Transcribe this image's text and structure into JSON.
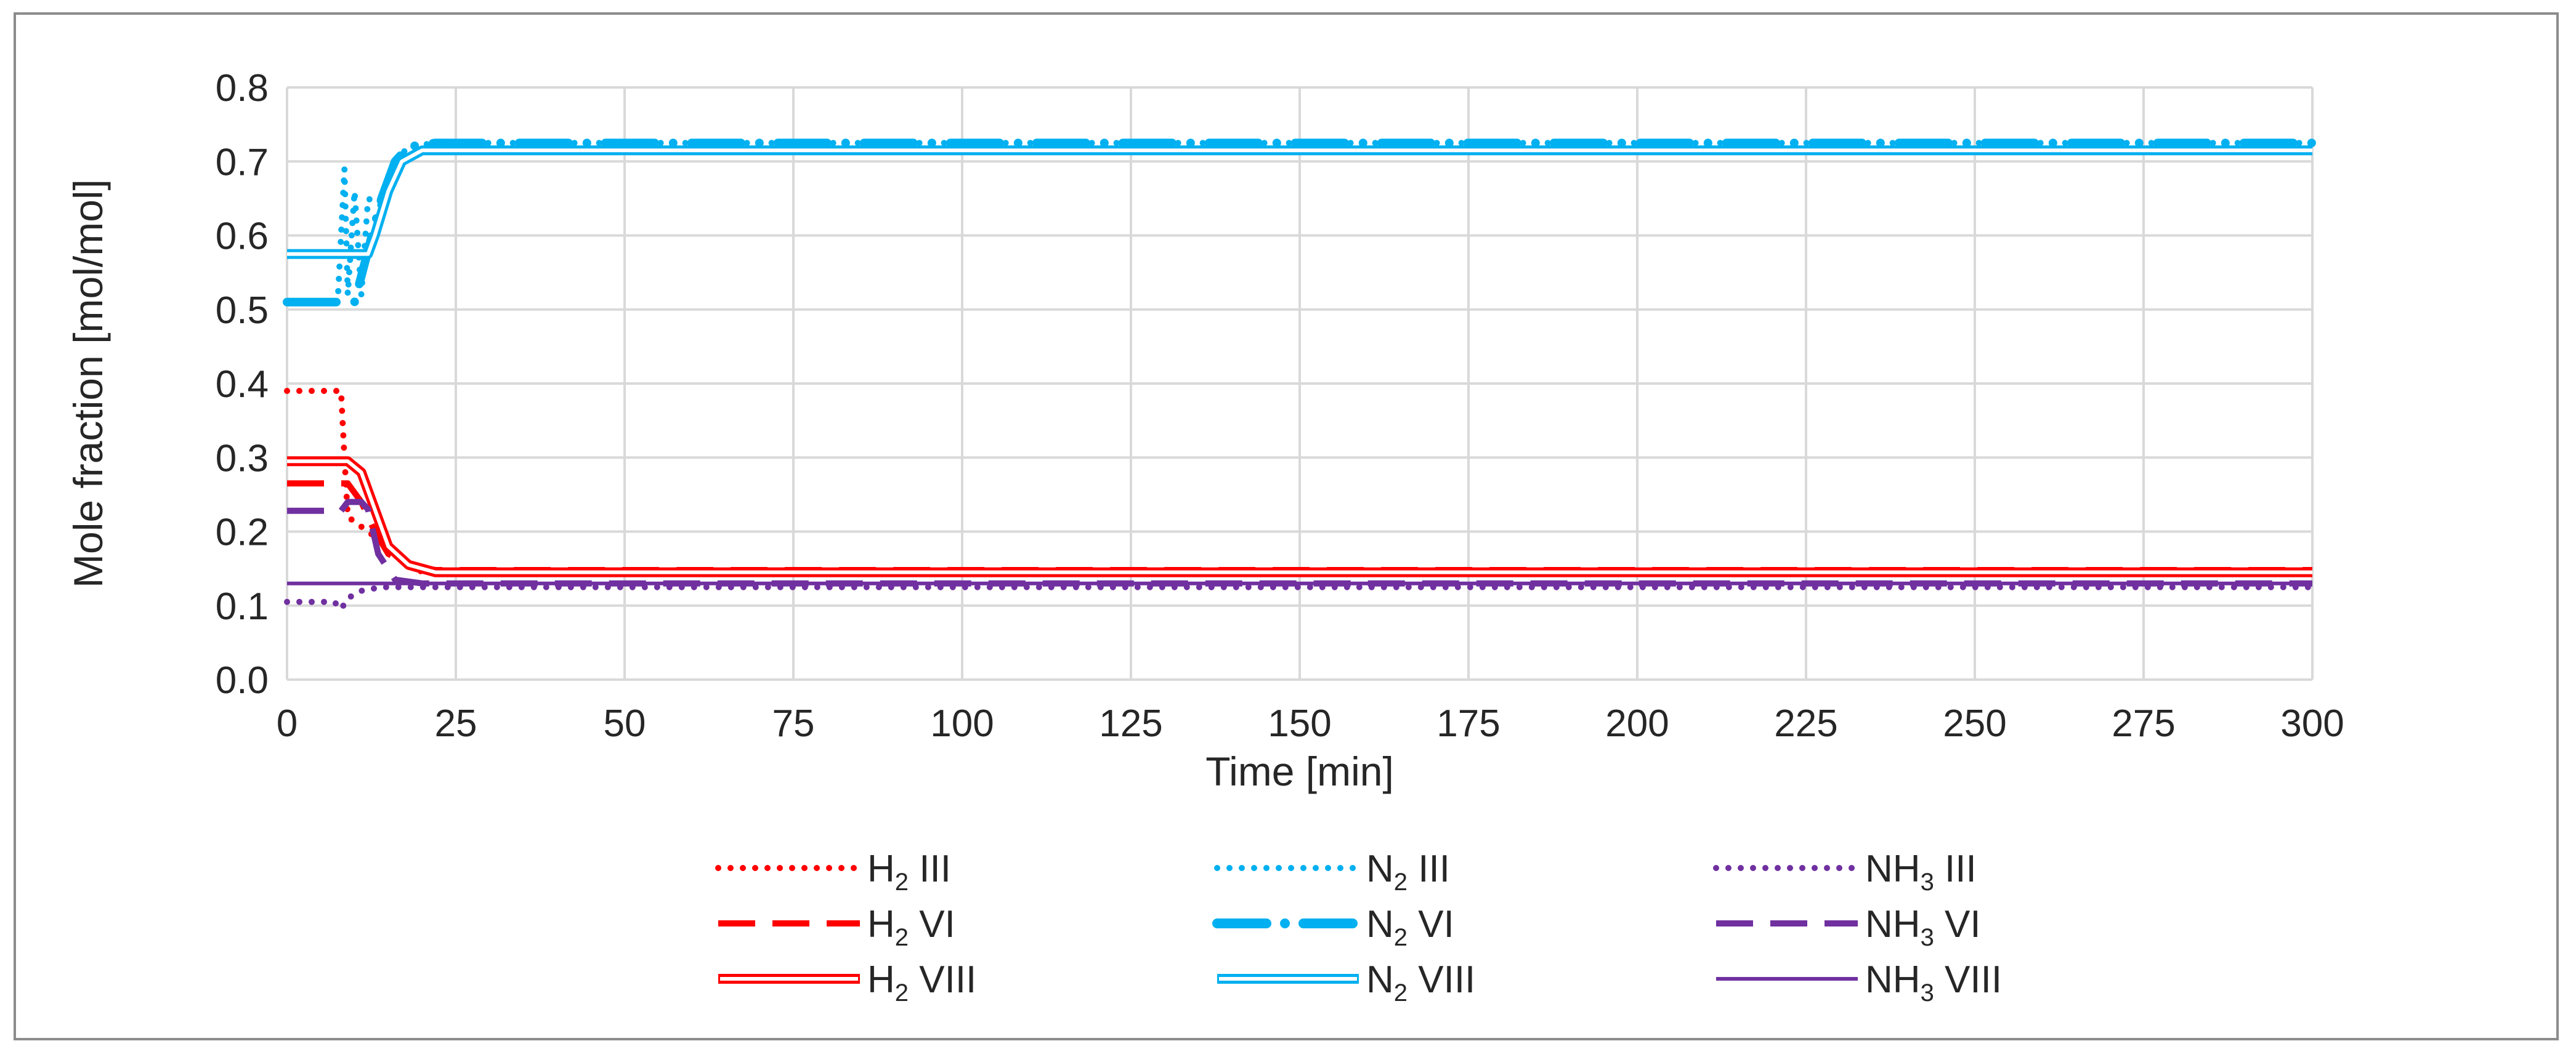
{
  "chart_data": {
    "type": "line",
    "title": "",
    "xlabel": "Time [min]",
    "ylabel": "Mole fraction [mol/mol]",
    "xlim": [
      0,
      300
    ],
    "ylim": [
      0.0,
      0.8
    ],
    "x_ticks": [
      "0",
      "25",
      "50",
      "75",
      "100",
      "125",
      "150",
      "175",
      "200",
      "225",
      "250",
      "275",
      "300"
    ],
    "y_ticks": [
      "0.0",
      "0.1",
      "0.2",
      "0.3",
      "0.4",
      "0.5",
      "0.6",
      "0.7",
      "0.8"
    ],
    "grid": true,
    "legend_position": "bottom",
    "colors": {
      "h2": "#ff0000",
      "n2": "#00b0f0",
      "nh3": "#7030a0",
      "grid": "#d9d9d9"
    },
    "series": [
      {
        "name": "H2 III",
        "label_base": "H",
        "label_sub": "2",
        "label_suffix": " III",
        "color": "#ff0000",
        "style": "dotted",
        "x": [
          0,
          8,
          8.5,
          9,
          12,
          20,
          300
        ],
        "y": [
          0.39,
          0.39,
          0.3,
          0.22,
          0.2,
          0.145,
          0.145
        ]
      },
      {
        "name": "H2 VI",
        "label_base": "H",
        "label_sub": "2",
        "label_suffix": " VI",
        "color": "#ff0000",
        "style": "dashed",
        "x": [
          0,
          9,
          11,
          13,
          15,
          18,
          22,
          300
        ],
        "y": [
          0.265,
          0.265,
          0.24,
          0.2,
          0.17,
          0.155,
          0.148,
          0.148
        ]
      },
      {
        "name": "H2 VIII",
        "label_base": "H",
        "label_sub": "2",
        "label_suffix": " VIII",
        "color": "#ff0000",
        "style": "double",
        "x": [
          0,
          9,
          11,
          13,
          15,
          18,
          22,
          300
        ],
        "y": [
          0.295,
          0.295,
          0.28,
          0.23,
          0.18,
          0.155,
          0.145,
          0.145
        ]
      },
      {
        "name": "N2 III",
        "label_base": "N",
        "label_sub": "2",
        "label_suffix": " III",
        "color": "#00b0f0",
        "style": "dotted",
        "x": [
          0,
          7.5,
          8.5,
          9,
          10,
          11,
          12,
          14,
          16,
          18,
          22,
          300
        ],
        "y": [
          0.51,
          0.51,
          0.69,
          0.52,
          0.66,
          0.52,
          0.65,
          0.64,
          0.7,
          0.72,
          0.725,
          0.725
        ]
      },
      {
        "name": "N2 VI",
        "label_base": "N",
        "label_sub": "2",
        "label_suffix": " VI",
        "color": "#00b0f0",
        "style": "dashdot",
        "x": [
          0,
          10,
          12,
          14,
          16,
          18,
          22,
          300
        ],
        "y": [
          0.51,
          0.51,
          0.58,
          0.65,
          0.7,
          0.72,
          0.725,
          0.725
        ]
      },
      {
        "name": "N2 VIII",
        "label_base": "N",
        "label_sub": "2",
        "label_suffix": " VIII",
        "color": "#00b0f0",
        "style": "double",
        "x": [
          0,
          12,
          13,
          15,
          17,
          20,
          24,
          300
        ],
        "y": [
          0.575,
          0.575,
          0.6,
          0.66,
          0.7,
          0.715,
          0.715,
          0.715
        ]
      },
      {
        "name": "NH3 III",
        "label_base": "NH",
        "label_sub": "3",
        "label_suffix": " III",
        "color": "#7030a0",
        "style": "dotted",
        "x": [
          0,
          7,
          8,
          9,
          11,
          14,
          18,
          300
        ],
        "y": [
          0.105,
          0.105,
          0.095,
          0.11,
          0.12,
          0.125,
          0.125,
          0.125
        ]
      },
      {
        "name": "NH3 VI",
        "label_base": "NH",
        "label_sub": "3",
        "label_suffix": " VI",
        "color": "#7030a0",
        "style": "dashed",
        "x": [
          0,
          8,
          9,
          11,
          12,
          13.5,
          16,
          20,
          300
        ],
        "y": [
          0.228,
          0.228,
          0.24,
          0.24,
          0.23,
          0.17,
          0.135,
          0.13,
          0.13
        ]
      },
      {
        "name": "NH3 VIII",
        "label_base": "NH",
        "label_sub": "3",
        "label_suffix": " VIII",
        "color": "#7030a0",
        "style": "solid",
        "x": [
          0,
          14,
          300
        ],
        "y": [
          0.13,
          0.13,
          0.13
        ]
      }
    ]
  }
}
